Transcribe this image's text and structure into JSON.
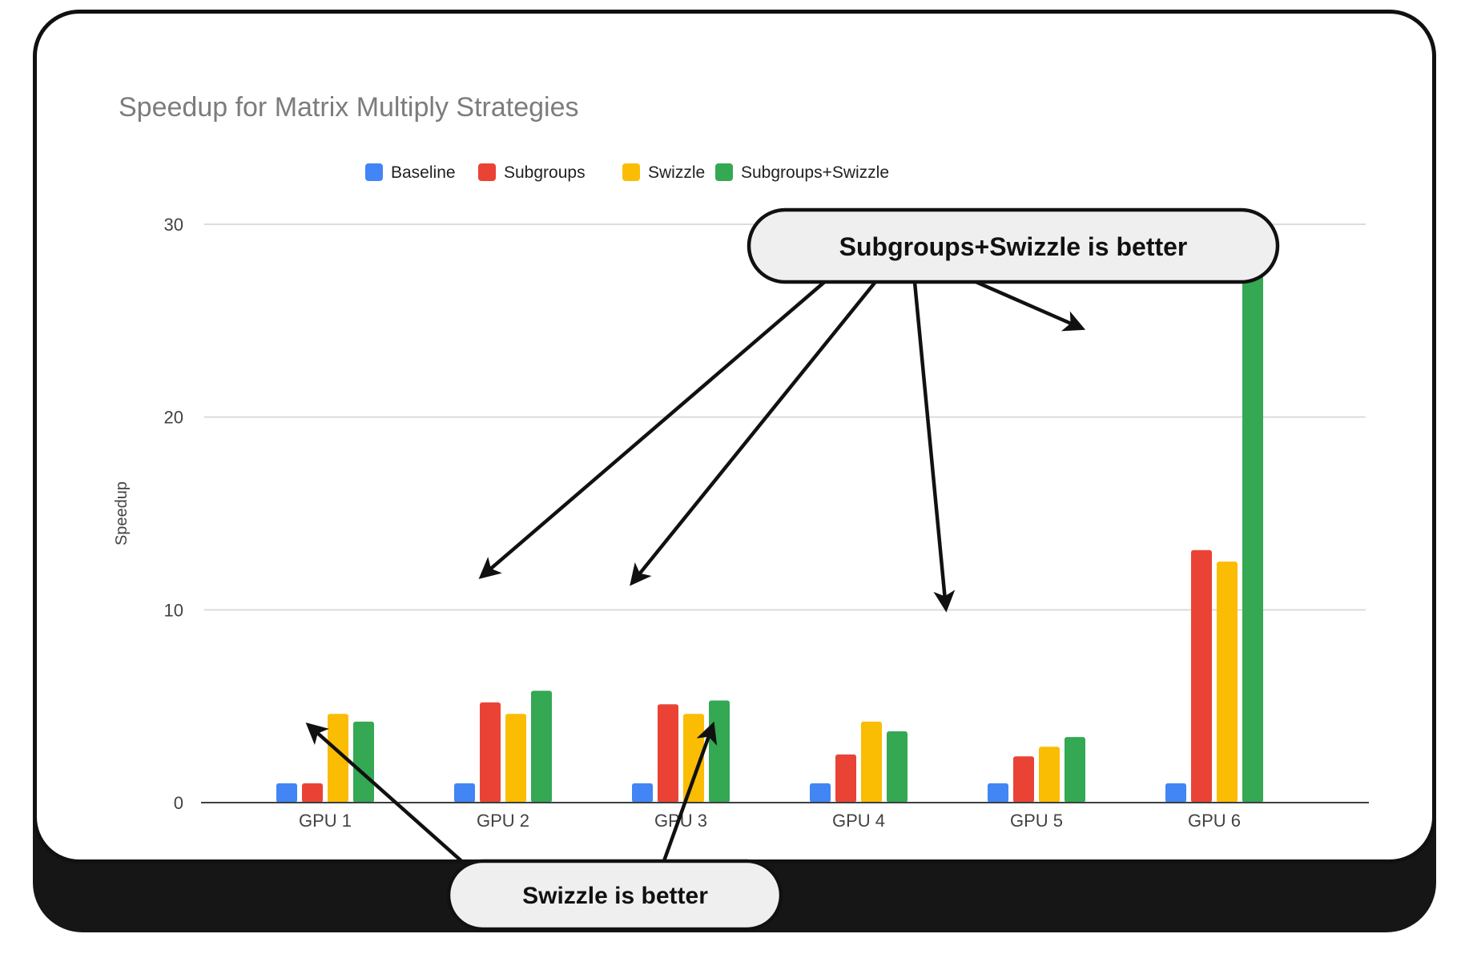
{
  "chart_data": {
    "type": "bar",
    "title": "Speedup for Matrix Multiply Strategies",
    "xlabel": "",
    "ylabel": "Speedup",
    "categories": [
      "GPU 1",
      "GPU 2",
      "GPU 3",
      "GPU 4",
      "GPU 5",
      "GPU 6"
    ],
    "series": [
      {
        "name": "Baseline",
        "color": "#4285F4",
        "values": [
          1.0,
          1.0,
          1.0,
          1.0,
          1.0,
          1.0
        ]
      },
      {
        "name": "Subgroups",
        "color": "#EA4335",
        "values": [
          1.0,
          5.2,
          5.1,
          2.5,
          2.4,
          13.1
        ]
      },
      {
        "name": "Swizzle",
        "color": "#FBBC04",
        "values": [
          4.6,
          4.6,
          4.6,
          4.2,
          2.9,
          12.5
        ]
      },
      {
        "name": "Subgroups+Swizzle",
        "color": "#34A853",
        "values": [
          4.2,
          5.8,
          5.3,
          3.7,
          3.4,
          28.3
        ]
      }
    ],
    "ylim": [
      0,
      30
    ],
    "yticks": [
      0,
      10,
      20,
      30
    ],
    "grid": true,
    "legend_position": "top"
  },
  "annotations": [
    {
      "text": "Subgroups+Swizzle is better",
      "series": "Subgroups+Swizzle",
      "targets": [
        "GPU 2",
        "GPU 3",
        "GPU 5",
        "GPU 6"
      ]
    },
    {
      "text": "Swizzle is better",
      "series": "Swizzle",
      "targets": [
        "GPU 1",
        "GPU 4"
      ]
    }
  ]
}
